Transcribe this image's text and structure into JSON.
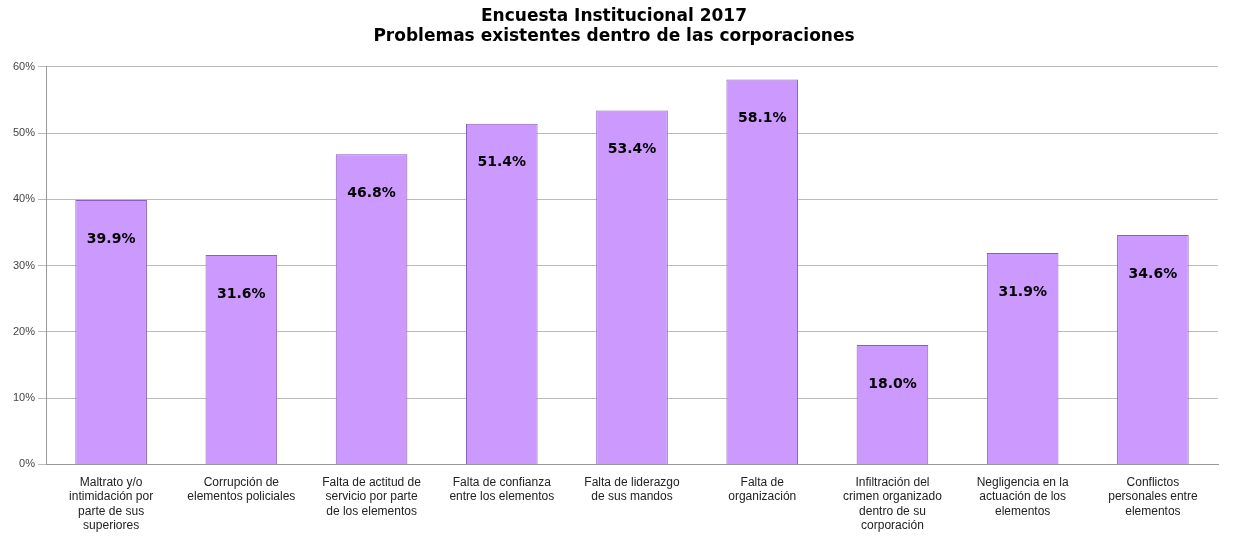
{
  "chart_data": {
    "type": "bar",
    "title": "Encuesta Institucional 2017",
    "subtitle": "Problemas existentes dentro de las corporaciones",
    "categories": [
      "Maltrato y/o intimidación por parte de sus superiores",
      "Corrupción de elementos policiales",
      "Falta de actitud de servicio por parte de los elementos",
      "Falta de confianza entre los elementos",
      "Falta de liderazgo de sus mandos",
      "Falta de organización",
      "Infiltración del crimen organizado dentro de su corporación",
      "Negligencia en la actuación de los elementos",
      "Conflictos personales entre elementos"
    ],
    "values": [
      39.9,
      31.6,
      46.8,
      51.4,
      53.4,
      58.1,
      18.0,
      31.9,
      34.6
    ],
    "value_labels": [
      "39.9%",
      "31.6%",
      "46.8%",
      "51.4%",
      "53.4%",
      "58.1%",
      "18.0%",
      "31.9%",
      "34.6%"
    ],
    "color": "#cc99ff",
    "ylim": [
      0,
      60
    ],
    "yticks": [
      {
        "value": 0,
        "label": "0%"
      },
      {
        "value": 10,
        "label": "10%"
      },
      {
        "value": 20,
        "label": "20%"
      },
      {
        "value": 30,
        "label": "30%"
      },
      {
        "value": 40,
        "label": "40%"
      },
      {
        "value": 50,
        "label": "50%"
      },
      {
        "value": 60,
        "label": "60%"
      }
    ],
    "grid": "y",
    "legend": false
  }
}
